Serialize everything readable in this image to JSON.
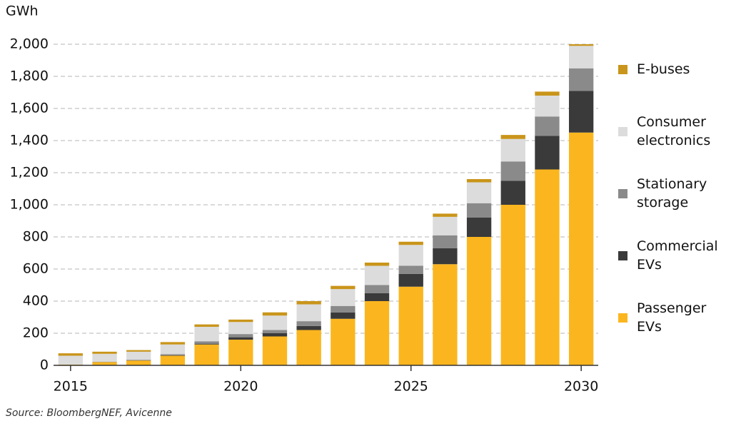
{
  "chart_data": {
    "type": "stacked-bar",
    "y_label": "GWh",
    "source": "Source: BloombergNEF, Avicenne",
    "x": [
      2015,
      2016,
      2017,
      2018,
      2019,
      2020,
      2021,
      2022,
      2023,
      2024,
      2025,
      2026,
      2027,
      2028,
      2029,
      2030
    ],
    "xlim": [
      2014.5,
      2030.5
    ],
    "xticks": [
      2015,
      2020,
      2025,
      2030
    ],
    "ylim": [
      0,
      2000
    ],
    "yticks": [
      0,
      200,
      400,
      600,
      800,
      {
        "value": 1000,
        "label": "1,000"
      },
      {
        "value": 1200,
        "label": "1,200"
      },
      {
        "value": 1400,
        "label": "1,400"
      },
      {
        "value": 1600,
        "label": "1,600"
      },
      {
        "value": 1800,
        "label": "1,800"
      },
      {
        "value": 2000,
        "label": "2,000"
      }
    ],
    "grid": true,
    "legend": "right",
    "series": [
      {
        "name": "Passenger EVs",
        "color": "#fbb61f",
        "values": [
          5,
          20,
          30,
          60,
          130,
          160,
          180,
          220,
          290,
          400,
          490,
          630,
          800,
          1000,
          1220,
          1450
        ]
      },
      {
        "name": "Commercial EVs",
        "color": "#3a3a3a",
        "values": [
          0,
          0,
          2,
          3,
          5,
          15,
          20,
          25,
          40,
          50,
          80,
          100,
          120,
          150,
          210,
          260
        ]
      },
      {
        "name": "Stationary storage",
        "color": "#8a8a8a",
        "values": [
          0,
          2,
          3,
          7,
          15,
          20,
          20,
          30,
          40,
          50,
          50,
          80,
          90,
          120,
          120,
          140
        ]
      },
      {
        "name": "Consumer electronics",
        "color": "#dcdcdc",
        "values": [
          55,
          50,
          50,
          60,
          90,
          75,
          90,
          105,
          105,
          120,
          130,
          115,
          130,
          140,
          130,
          140
        ]
      },
      {
        "name": "E-buses",
        "color": "#c9951a",
        "values": [
          15,
          13,
          10,
          15,
          15,
          15,
          20,
          20,
          20,
          20,
          20,
          20,
          20,
          25,
          25,
          10
        ]
      }
    ]
  }
}
